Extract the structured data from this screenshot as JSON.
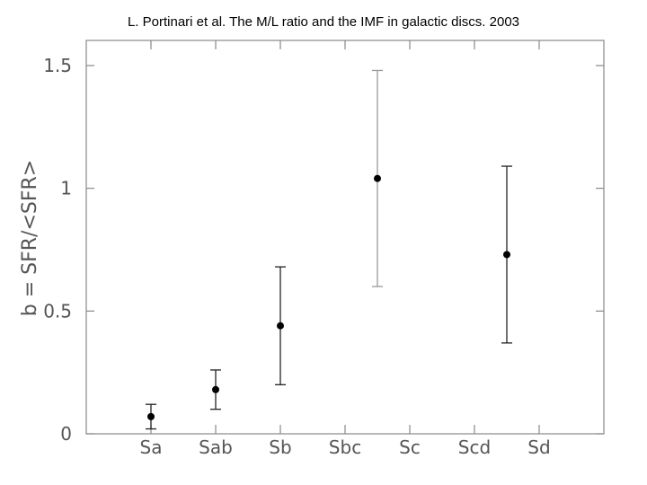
{
  "header": {
    "citation": "L. Portinari et al. The M/L ratio and the IMF in galactic discs. 2003"
  },
  "chart_data": {
    "type": "scatter",
    "title": "",
    "xlabel": "",
    "ylabel": "b = SFR/<SFR>",
    "categories": [
      "Sa",
      "Sab",
      "Sb",
      "Sbc",
      "Sc",
      "Scd",
      "Sd"
    ],
    "ylim": [
      0,
      1.6
    ],
    "yticks": [
      0,
      0.5,
      1,
      1.5
    ],
    "ytick_labels": [
      "0",
      "0.5",
      "1",
      "1.5"
    ],
    "grid": false,
    "points": [
      {
        "x": 0,
        "y": 0.07,
        "ylow": 0.02,
        "yhigh": 0.12,
        "color": "#222222"
      },
      {
        "x": 1,
        "y": 0.18,
        "ylow": 0.1,
        "yhigh": 0.26,
        "color": "#222222"
      },
      {
        "x": 2,
        "y": 0.44,
        "ylow": 0.2,
        "yhigh": 0.68,
        "color": "#222222"
      },
      {
        "x": 3.5,
        "y": 1.04,
        "ylow": 0.6,
        "yhigh": 1.48,
        "color": "#999999"
      },
      {
        "x": 5.5,
        "y": 0.73,
        "ylow": 0.37,
        "yhigh": 1.09,
        "color": "#222222"
      }
    ]
  }
}
